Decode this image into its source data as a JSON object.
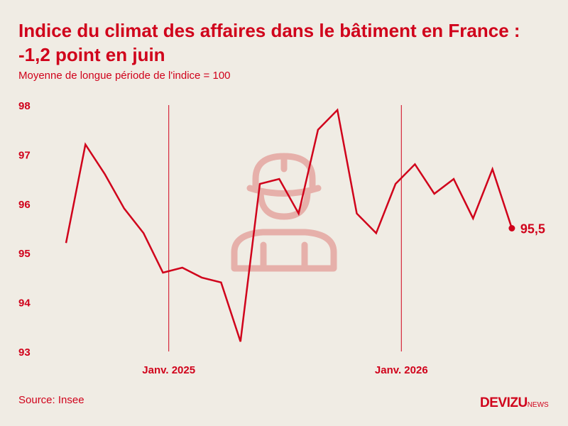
{
  "header": {
    "title": "Indice du climat des affaires dans le bâtiment en France : -1,2 point en juin",
    "subtitle": "Moyenne de longue période de l'indice = 100"
  },
  "footer": {
    "source": "Source: Insee",
    "brand_main": "DEVIZU",
    "brand_suffix": "NEWS"
  },
  "colors": {
    "accent": "#d0021b",
    "background": "#f0ece4",
    "icon": "#e6b0aa"
  },
  "icon": "construction-worker-icon",
  "chart_data": {
    "type": "line",
    "ylim": [
      93,
      98
    ],
    "yticks": [
      "98",
      "97",
      "96",
      "95",
      "94",
      "93"
    ],
    "xtick_labels": [
      {
        "label": "Janv. 2025",
        "index": 6
      },
      {
        "label": "Janv. 2026",
        "index": 18
      }
    ],
    "series": [
      {
        "values": [
          95.2,
          97.2,
          96.6,
          95.9,
          95.4,
          94.6,
          94.7,
          94.5,
          94.4,
          93.2,
          96.4,
          96.5,
          95.8,
          97.5,
          97.9,
          95.8,
          95.4,
          96.4,
          96.8,
          96.2,
          96.5,
          95.7,
          96.7,
          95.5
        ]
      }
    ],
    "end_label": "95,5",
    "grid": false,
    "legend": "none"
  }
}
